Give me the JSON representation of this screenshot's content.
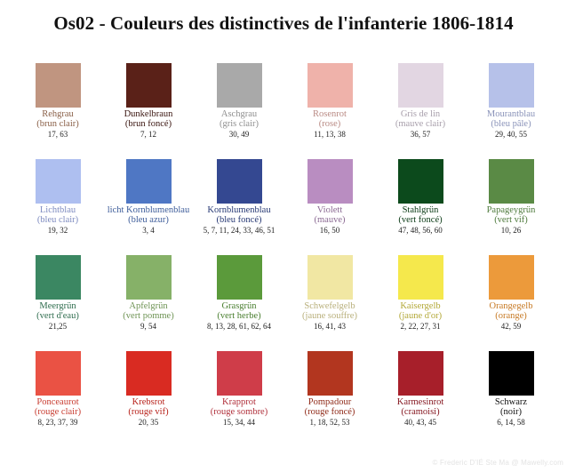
{
  "title": "Os02 - Couleurs des distinctives de l'infanterie 1806-1814",
  "watermark": "© Frederic D'IÉ Ste Ma @ Mawelly.com",
  "swatches": [
    {
      "name": "Rehgrau",
      "sub": "(brun clair)",
      "nums": "17, 63",
      "color": "#c09580",
      "text_color": "#8a6048"
    },
    {
      "name": "Dunkelbraun",
      "sub": "(brun foncé)",
      "nums": "7, 12",
      "color": "#5a2118",
      "text_color": "#3a1510"
    },
    {
      "name": "Aschgrau",
      "sub": "(gris clair)",
      "nums": "30, 49",
      "color": "#a9a9a9",
      "text_color": "#8f8f8f"
    },
    {
      "name": "Rosenrot",
      "sub": "(rose)",
      "nums": "11, 13, 38",
      "color": "#efb2aa",
      "text_color": "#b98a84"
    },
    {
      "name": "Gris de lin",
      "sub": "(mauve clair)",
      "nums": "36, 57",
      "color": "#e2d6e2",
      "text_color": "#a89fab"
    },
    {
      "name": "Mourantblau",
      "sub": "(bleu pâle)",
      "nums": "29, 40, 55",
      "color": "#b6c1e9",
      "text_color": "#8a93b9"
    },
    {
      "name": "Lichtblau",
      "sub": "(bleu clair)",
      "nums": "19, 32",
      "color": "#aebff0",
      "text_color": "#7f8cc0"
    },
    {
      "name": "licht Kornblumenblau",
      "sub": "(bleu azur)",
      "nums": "3, 4",
      "color": "#4f77c4",
      "text_color": "#3e5d9a"
    },
    {
      "name": "Kornblumenblau",
      "sub": "(bleu foncé)",
      "nums": "5, 7, 11, 24, 33, 46, 51",
      "color": "#344891",
      "text_color": "#283a75"
    },
    {
      "name": "Violett",
      "sub": "(mauve)",
      "nums": "16, 50",
      "color": "#b98dc1",
      "text_color": "#8b6a93"
    },
    {
      "name": "Stahlgrün",
      "sub": "(vert foncé)",
      "nums": "47, 48, 56, 60",
      "color": "#0c4a1c",
      "text_color": "#0b3b16"
    },
    {
      "name": "Papageygrün",
      "sub": "(vert vif)",
      "nums": "10, 26",
      "color": "#5a8a45",
      "text_color": "#4e7a3c"
    },
    {
      "name": "Meergrün",
      "sub": "(vert d'eau)",
      "nums": "21,25",
      "color": "#3b8762",
      "text_color": "#2f6d4e"
    },
    {
      "name": "Apfelgrün",
      "sub": "(vert pomme)",
      "nums": "9, 54",
      "color": "#86b168",
      "text_color": "#6f9455"
    },
    {
      "name": "Grasgrün",
      "sub": "(vert herbe)",
      "nums": "8, 13, 28, 61, 62, 64",
      "color": "#5b9a3b",
      "text_color": "#4a7f30"
    },
    {
      "name": "Schwefelgelb",
      "sub": "(jaune souffre)",
      "nums": "16, 41, 43",
      "color": "#f1e7a3",
      "text_color": "#b9b07c"
    },
    {
      "name": "Kaisergelb",
      "sub": "(jaune d'or)",
      "nums": "2, 22, 27, 31",
      "color": "#f5e84c",
      "text_color": "#b3a837"
    },
    {
      "name": "Orangegelb",
      "sub": "(orange)",
      "nums": "42, 59",
      "color": "#ec9a3b",
      "text_color": "#c77a25"
    },
    {
      "name": "Ponceaurot",
      "sub": "(rouge clair)",
      "nums": "8, 23, 37, 39",
      "color": "#ea5244",
      "text_color": "#c83c30"
    },
    {
      "name": "Krebsrot",
      "sub": "(rouge vif)",
      "nums": "20, 35",
      "color": "#d92b22",
      "text_color": "#b8221b"
    },
    {
      "name": "Krapprot",
      "sub": "(rouge sombre)",
      "nums": "15, 34, 44",
      "color": "#cf3d49",
      "text_color": "#b0303b"
    },
    {
      "name": "Pompadour",
      "sub": "(rouge foncé)",
      "nums": "1, 18, 52, 53",
      "color": "#b2361f",
      "text_color": "#8f2a18"
    },
    {
      "name": "Karmesinrot",
      "sub": "(cramoisi)",
      "nums": "40, 43, 45",
      "color": "#a71f2a",
      "text_color": "#861922"
    },
    {
      "name": "Schwarz",
      "sub": "(noir)",
      "nums": "6, 14, 58",
      "color": "#000000",
      "text_color": "#111111"
    }
  ]
}
